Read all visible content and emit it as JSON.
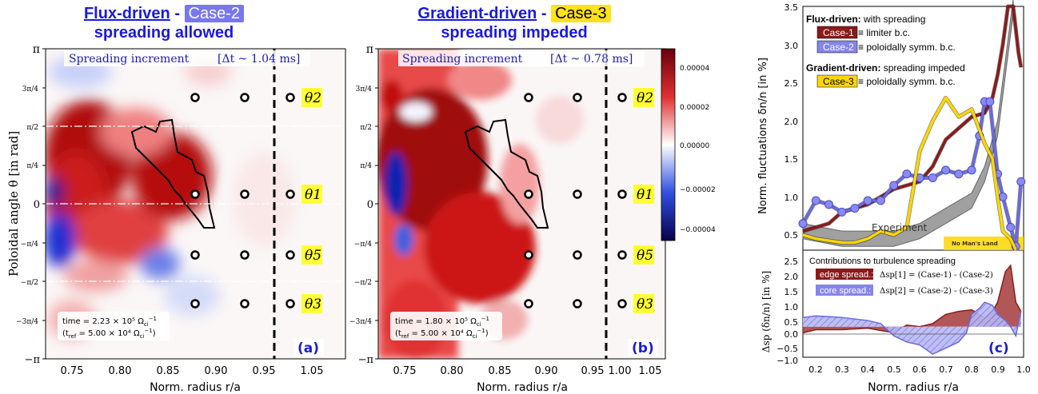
{
  "titles": {
    "a_link": "Flux-driven",
    "a_dash": "-",
    "a_case": "Case-2",
    "a_sub": "spreading allowed",
    "b_link": "Gradient-driven",
    "b_dash": "-",
    "b_case": "Case-3",
    "b_sub": "spreading impeded"
  },
  "panel_a": {
    "header": "Spreading increment",
    "dt": "[Δt ~ 1.04 ms]",
    "time1": "time = 2.23 × 10⁵ Ω",
    "time1_sub": "ci",
    "time1_sup": "−1",
    "time2": "(t",
    "time2_sub": "ref",
    "time2_rest": " = 5.00 × 10⁴ Ω",
    "time2_sub2": "ci",
    "time2_sup": "−1",
    "time2_end": ")",
    "letter": "(a)"
  },
  "panel_b": {
    "header": "Spreading increment",
    "dt": "[Δt ~ 0.78 ms]",
    "time1": "time = 1.80 × 10⁵ Ω",
    "time1_sub": "ci",
    "time1_sup": "−1",
    "time2": "(t",
    "time2_sub": "ref",
    "time2_rest": " = 5.00 × 10⁴ Ω",
    "time2_sub2": "ci",
    "time2_sup": "−1",
    "time2_end": ")",
    "letter": "(b)"
  },
  "maps": {
    "ylabel": "Poloidal angle θ  [in rad]",
    "xlabel": "Norm. radius r/a",
    "x_ticks": [
      "0.75",
      "0.80",
      "0.85",
      "0.90",
      "0.95",
      "1.00",
      "1.05"
    ],
    "y_ticks": [
      "π",
      "3π/4",
      "π/2",
      "π/4",
      "0",
      "−π/4",
      "−π/2",
      "−3π/4",
      "−π"
    ],
    "theta_labels": [
      "θ2",
      "θ1",
      "θ5",
      "θ3"
    ],
    "colorbar_ticks": [
      "0.00004",
      "0.00002",
      "0.00000",
      "−0.00002",
      "−0.00004"
    ]
  },
  "panel_c": {
    "ylabel_top": "Norm. fluctuations δn/n  [in %]",
    "ylabel_bot": "Δsp (δn/n)  [in %]",
    "xlabel": "Norm. radius r/a",
    "x_ticks": [
      "0.2",
      "0.3",
      "0.4",
      "0.5",
      "0.6",
      "0.7",
      "0.8",
      "0.9",
      "1.0"
    ],
    "top_y_ticks": [
      "3.5",
      "3.0",
      "2.5",
      "2.0",
      "1.5",
      "1.0",
      "0.5"
    ],
    "bot_y_ticks": [
      "2.5",
      "2.0",
      "1.5",
      "1.0",
      "0.5",
      "0.0",
      "−0.5",
      "−1.0"
    ],
    "legend_flux_bold": "Flux-driven:",
    "legend_flux_rest": " with spreading",
    "legend_case1": "Case-1",
    "legend_case1_desc": "≡ limiter b.c.",
    "legend_case2": "Case-2",
    "legend_case2_desc": "≡ poloidally symm. b.c.",
    "legend_grad_bold": "Gradient-driven:",
    "legend_grad_rest": " spreading impeded",
    "legend_case3": "Case-3",
    "legend_case3_desc": "≡ poloidally symm. b.c.",
    "experiment": "Experiment",
    "nomansland": "No Man's Land",
    "contrib_title": "Contributions to turbulence spreading",
    "edge_label": "edge spread.:",
    "edge_formula": "Δsp[1] = (Case-1) - (Case-2)",
    "core_label": "core spread.:",
    "core_formula": "Δsp[2] = (Case-2) - (Case-3)",
    "letter": "(c)"
  },
  "chart_data": [
    {
      "type": "heatmap",
      "title": "Spreading increment [Δt ~ 1.04 ms]",
      "xlabel": "Norm. radius r/a",
      "ylabel": "Poloidal angle θ [in rad]",
      "xlim": [
        0.72,
        1.07
      ],
      "ylim": [
        -3.1416,
        3.1416
      ],
      "colorbar_range": [
        -5e-05,
        5e-05
      ]
    },
    {
      "type": "heatmap",
      "title": "Spreading increment [Δt ~ 0.78 ms]",
      "xlabel": "Norm. radius r/a",
      "ylabel": "",
      "xlim": [
        0.72,
        1.07
      ],
      "ylim": [
        -3.1416,
        3.1416
      ],
      "colorbar_range": [
        -5e-05,
        5e-05
      ]
    },
    {
      "type": "line",
      "xlabel": "Norm. radius r/a",
      "ylabel": "Norm. fluctuations δn/n [in %]",
      "xlim": [
        0.15,
        1.0
      ],
      "ylim": [
        0.3,
        3.5
      ],
      "series": [
        {
          "name": "Case-1",
          "color": "#8b1a1a",
          "x": [
            0.15,
            0.2,
            0.25,
            0.3,
            0.35,
            0.4,
            0.45,
            0.5,
            0.55,
            0.6,
            0.65,
            0.7,
            0.75,
            0.8,
            0.85,
            0.88,
            0.9,
            0.92,
            0.94,
            0.96,
            0.98,
            0.99
          ],
          "y": [
            0.55,
            0.6,
            0.65,
            0.8,
            0.85,
            0.9,
            1.0,
            1.1,
            1.15,
            1.2,
            1.4,
            1.75,
            1.9,
            2.05,
            2.1,
            2.3,
            2.6,
            3.0,
            3.6,
            3.6,
            2.9,
            2.7
          ]
        },
        {
          "name": "Case-2",
          "color": "#6a6ae0",
          "x": [
            0.15,
            0.2,
            0.25,
            0.3,
            0.35,
            0.4,
            0.45,
            0.5,
            0.55,
            0.6,
            0.65,
            0.7,
            0.75,
            0.8,
            0.83,
            0.85,
            0.87,
            0.9,
            0.92,
            0.95,
            0.97,
            0.99
          ],
          "y": [
            0.65,
            0.95,
            0.9,
            0.8,
            0.85,
            0.95,
            0.95,
            1.15,
            1.3,
            1.25,
            1.25,
            1.35,
            1.3,
            1.35,
            1.8,
            2.25,
            2.25,
            1.3,
            1.0,
            0.6,
            0.35,
            1.2
          ]
        },
        {
          "name": "Case-3",
          "color": "#ffd700",
          "x": [
            0.15,
            0.2,
            0.3,
            0.35,
            0.4,
            0.45,
            0.5,
            0.55,
            0.6,
            0.65,
            0.7,
            0.75,
            0.8,
            0.85,
            0.88,
            0.9,
            0.92,
            0.95,
            0.97
          ],
          "y": [
            0.5,
            0.45,
            0.4,
            0.4,
            0.45,
            0.55,
            0.5,
            0.6,
            1.6,
            2.0,
            2.3,
            2.05,
            2.15,
            1.7,
            1.5,
            1.0,
            0.55,
            0.45,
            0.3
          ]
        },
        {
          "name": "Experiment",
          "color": "#999999",
          "x": [
            0.15,
            0.3,
            0.5,
            0.6,
            0.7,
            0.75,
            0.8,
            0.85,
            0.9,
            0.93,
            0.96
          ],
          "y": [
            0.55,
            0.45,
            0.45,
            0.55,
            0.75,
            0.85,
            0.95,
            1.3,
            1.9,
            2.7,
            3.5
          ]
        }
      ]
    },
    {
      "type": "area",
      "xlabel": "Norm. radius r/a",
      "ylabel": "Δsp (δn/n) [in %]",
      "xlim": [
        0.15,
        1.0
      ],
      "ylim": [
        -1.0,
        2.5
      ],
      "series": [
        {
          "name": "edge spread.",
          "color": "#8b1a1a",
          "x": [
            0.15,
            0.2,
            0.3,
            0.4,
            0.5,
            0.55,
            0.6,
            0.65,
            0.7,
            0.75,
            0.8,
            0.85,
            0.88,
            0.9,
            0.93,
            0.95,
            0.97,
            0.99
          ],
          "y": [
            -0.2,
            -0.1,
            -0.1,
            -0.05,
            -0.2,
            0.05,
            0.0,
            0.1,
            0.4,
            0.5,
            0.55,
            0.3,
            0.5,
            0.8,
            1.8,
            2.0,
            0.8,
            0.5
          ]
        },
        {
          "name": "core spread.",
          "color": "#6a6ae0",
          "x": [
            0.15,
            0.2,
            0.3,
            0.4,
            0.45,
            0.5,
            0.55,
            0.6,
            0.65,
            0.7,
            0.75,
            0.78,
            0.8,
            0.83,
            0.85,
            0.88,
            0.9,
            0.93,
            0.95,
            0.97,
            0.99
          ],
          "y": [
            0.3,
            0.35,
            0.3,
            0.2,
            0.1,
            -0.3,
            -0.5,
            -0.6,
            -0.9,
            -0.7,
            -0.5,
            -0.2,
            0.4,
            0.6,
            0.8,
            0.7,
            0.4,
            0.2,
            0.0,
            -0.3,
            0.5
          ]
        }
      ]
    }
  ]
}
